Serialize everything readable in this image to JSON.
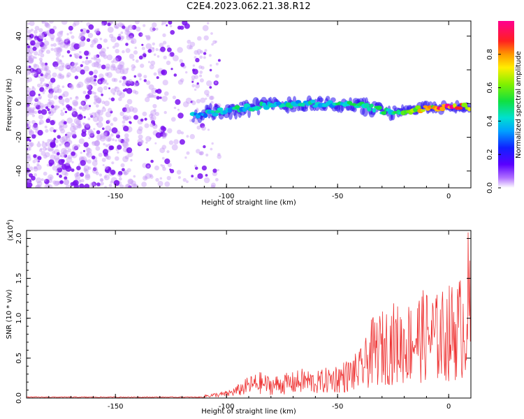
{
  "title": "C2E4.2023.062.21.38.R12",
  "chart_data": [
    {
      "type": "heatmap",
      "xlabel": "Height of straight line (km)",
      "ylabel": "Frequency (Hz)",
      "xlim": [
        -190,
        10
      ],
      "ylim": [
        -50,
        49
      ],
      "xticks": [
        -150,
        -100,
        -50,
        0
      ],
      "yticks": [
        -40,
        -20,
        0,
        20,
        40
      ],
      "colorbar": {
        "label": "Normalized spectral amplitude",
        "range": [
          0,
          1
        ],
        "ticks": [
          "0.0",
          "0.2",
          "0.4",
          "0.6",
          "0.8"
        ]
      },
      "noise_region": {
        "x_range": [
          -190,
          -115
        ],
        "freq_range": [
          -50,
          49
        ],
        "amplitude": 0.1
      },
      "signal_track": [
        {
          "x": -115,
          "freq": -7,
          "amplitude": 0.35
        },
        {
          "x": -100,
          "freq": -4,
          "amplitude": 0.4
        },
        {
          "x": -80,
          "freq": -1,
          "amplitude": 0.42
        },
        {
          "x": -60,
          "freq": 0,
          "amplitude": 0.4
        },
        {
          "x": -40,
          "freq": -1,
          "amplitude": 0.42
        },
        {
          "x": -25,
          "freq": -6,
          "amplitude": 0.45
        },
        {
          "x": -15,
          "freq": -3,
          "amplitude": 0.6
        },
        {
          "x": 0,
          "freq": -2,
          "amplitude": 0.85
        },
        {
          "x": 10,
          "freq": -2,
          "amplitude": 0.7
        }
      ]
    },
    {
      "type": "line",
      "xlabel": "Height of straight line (km)",
      "ylabel": "SNR (10 * v/v)",
      "y_multiplier": "(x10",
      "y_multiplier_exp": "4",
      "xlim": [
        -190,
        10
      ],
      "ylim": [
        0,
        2.1
      ],
      "xticks": [
        -150,
        -100,
        -50,
        0
      ],
      "yticks": [
        "0.0",
        "0.5",
        "1.0",
        "1.5",
        "2.0"
      ],
      "color": "#ee3333",
      "series": [
        {
          "x": [
            -190,
            -150,
            -120,
            -110,
            -100,
            -95,
            -90,
            -85,
            -80,
            -75,
            -70,
            -65,
            -60,
            -55,
            -50,
            -45,
            -40,
            -37,
            -35,
            -30,
            -25,
            -20,
            -15,
            -10,
            -5,
            0,
            5,
            8,
            9,
            10
          ],
          "y": [
            0.01,
            0.01,
            0.02,
            0.04,
            0.08,
            0.15,
            0.25,
            0.3,
            0.25,
            0.28,
            0.3,
            0.35,
            0.3,
            0.35,
            0.4,
            0.45,
            0.55,
            0.7,
            0.9,
            1.0,
            1.1,
            1.05,
            1.2,
            1.25,
            1.2,
            1.3,
            1.4,
            1.5,
            2.05,
            1.3
          ]
        }
      ]
    }
  ]
}
